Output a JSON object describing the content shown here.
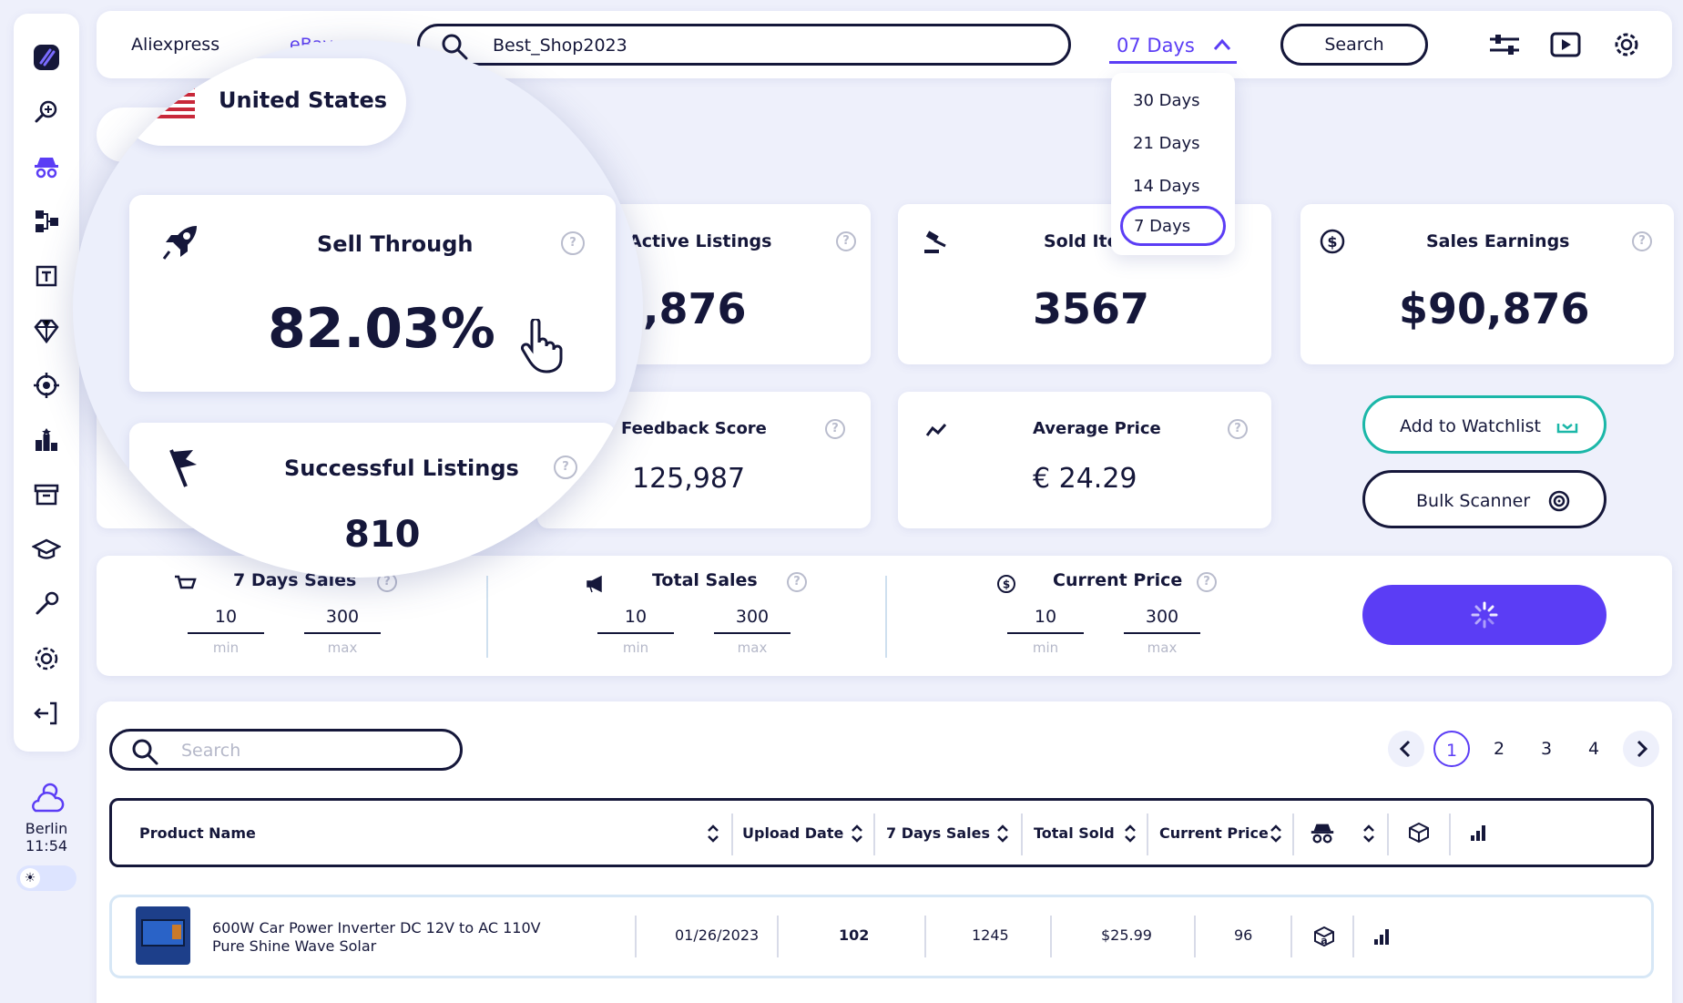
{
  "topbar": {
    "tab_aliexpress": "Aliexpress",
    "tab_ebay": "eBay",
    "search_value": "Best_Shop2023",
    "days_selected": "07 Days",
    "search_button": "Search"
  },
  "dropdown": {
    "options": [
      "30 Days",
      "21 Days",
      "14 Days",
      "7 Days"
    ]
  },
  "country": "United States",
  "cards": {
    "sell_through": {
      "title": "Sell Through",
      "value": "82.03%"
    },
    "successful_listings": {
      "title": "Successful Listings",
      "value": "810"
    },
    "active_listings": {
      "title": "Active Listings",
      "value": "4,876"
    },
    "sold_items": {
      "title": "Sold Items",
      "value": "3567"
    },
    "sales_earnings": {
      "title": "Sales Earnings",
      "value": "$90,876"
    },
    "feedback_score": {
      "title": "Feedback Score",
      "value": "125,987"
    },
    "average_price": {
      "title": "Average Price",
      "value": "€ 24.29"
    }
  },
  "actions": {
    "watchlist": "Add to Watchlist",
    "bulk_scanner": "Bulk Scanner"
  },
  "filters": [
    {
      "title": "7 Days Sales",
      "min": "10",
      "max": "300",
      "min_label": "min",
      "max_label": "max"
    },
    {
      "title": "Total Sales",
      "min": "10",
      "max": "300",
      "min_label": "min",
      "max_label": "max"
    },
    {
      "title": "Current Price",
      "min": "10",
      "max": "300",
      "min_label": "min",
      "max_label": "max"
    }
  ],
  "table": {
    "search_placeholder": "Search",
    "pages": [
      "1",
      "2",
      "3",
      "4"
    ],
    "headers": [
      "Product Name",
      "Upload Date",
      "7 Days Sales",
      "Total Sold",
      "Current Price"
    ],
    "rows": [
      {
        "name_line1": "600W Car Power Inverter DC 12V to AC 110V",
        "name_line2": "Pure Shine Wave Solar",
        "upload_date": "01/26/2023",
        "sales7": "102",
        "total_sold": "1245",
        "price": "$25.99",
        "competitors": "96"
      }
    ]
  },
  "weather": {
    "city": "Berlin",
    "time": "11:54"
  },
  "colors": {
    "accent": "#5b3df5",
    "dark": "#15173a",
    "teal": "#1bb7a8",
    "background": "#eef0fb"
  }
}
